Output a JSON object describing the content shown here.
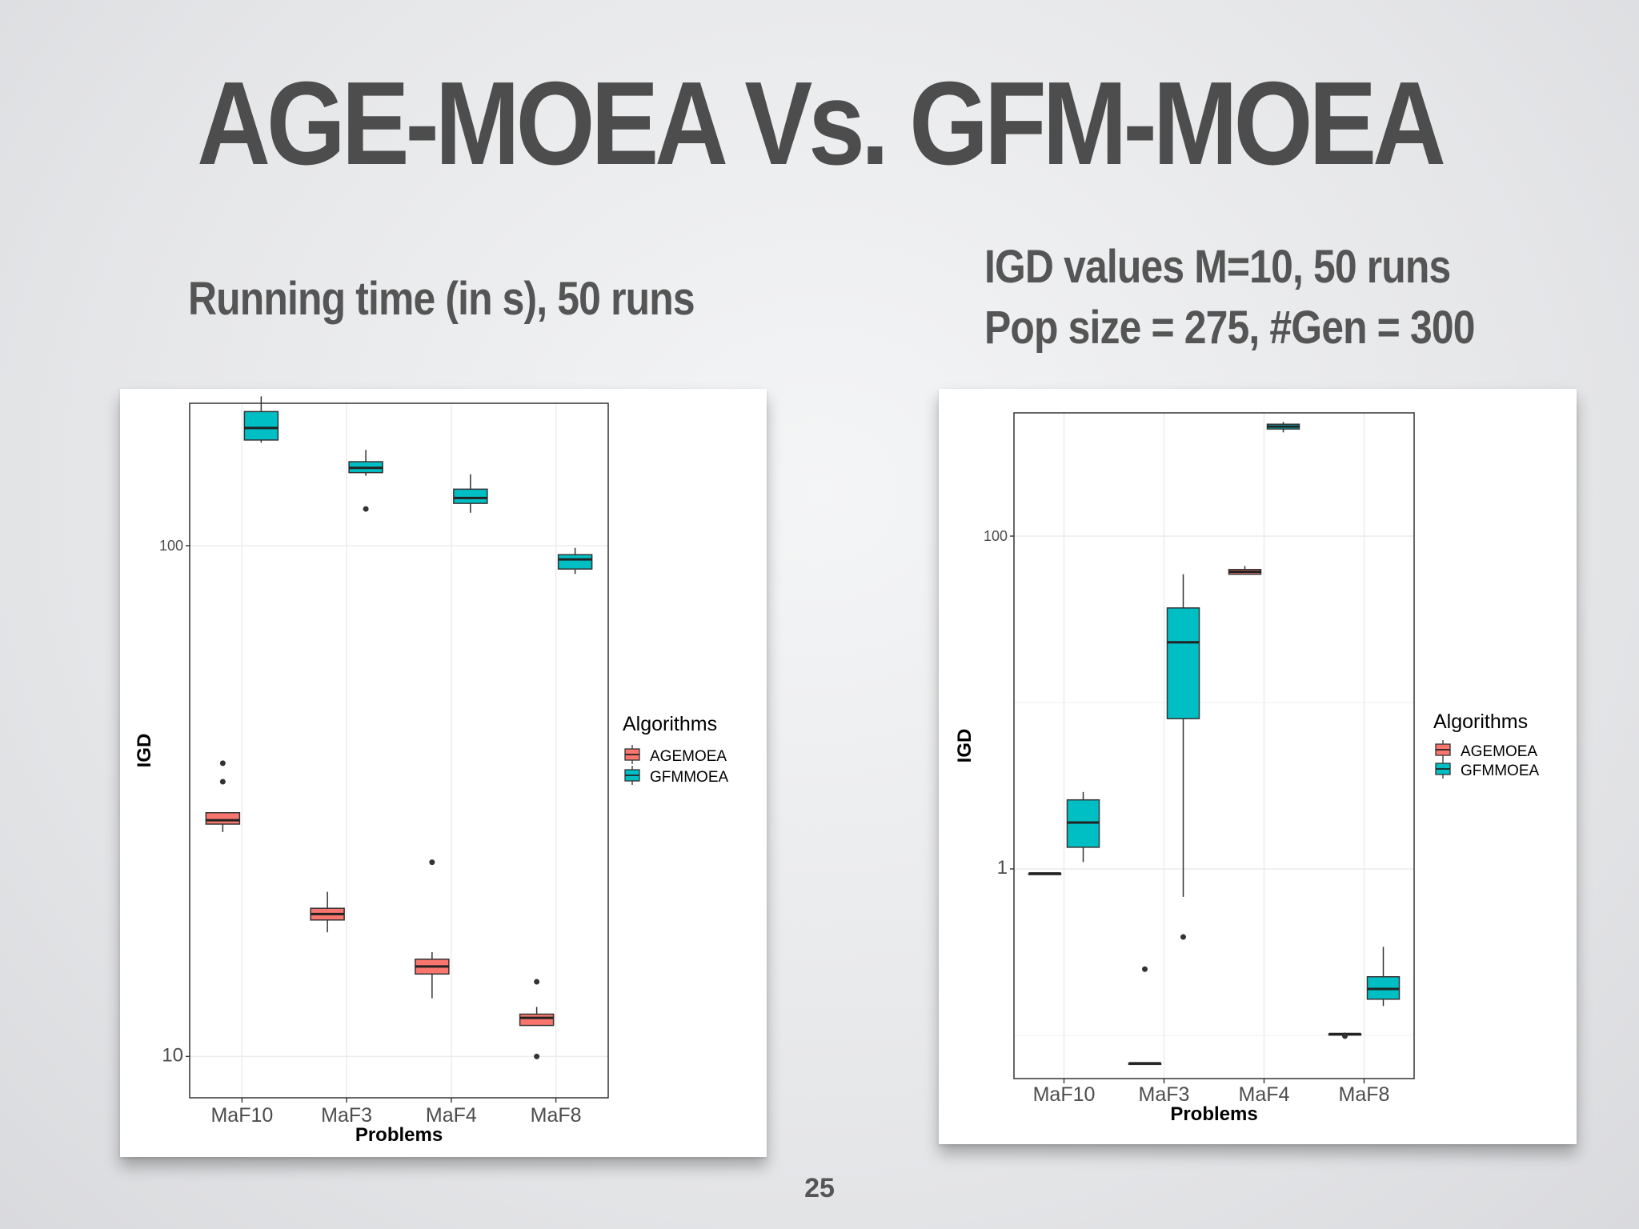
{
  "slide": {
    "title": "AGE-MOEA Vs. GFM-MOEA",
    "subtitle_left": "Running time (in s),  50 runs",
    "subtitle_right_line1": "IGD values M=10,  50 runs",
    "subtitle_right_line2": "Pop size = 275,  #Gen = 300",
    "page_number": "25"
  },
  "colors": {
    "agemoea": "#f8766d",
    "gfmmoea": "#00bfc4"
  },
  "chart_data": [
    {
      "type": "boxplot",
      "xlabel": "Problems",
      "ylabel": "IGD",
      "yscale": "log",
      "ylim": [
        8.3,
        190
      ],
      "y_ticks": [
        {
          "value": 100,
          "label": "100"
        },
        {
          "value": 10,
          "label": "10"
        }
      ],
      "categories": [
        "MaF10",
        "MaF3",
        "MaF4",
        "MaF8"
      ],
      "legend": {
        "title": "Algorithms",
        "position": "right",
        "entries": [
          "AGEMOEA",
          "GFMMOEA"
        ]
      },
      "series": [
        {
          "name": "AGEMOEA",
          "boxes": [
            {
              "category": "MaF10",
              "whisker_low": 27.5,
              "q1": 28.5,
              "median": 29.0,
              "q3": 30.0,
              "whisker_high": 30.0,
              "outliers": [
                34.5,
                37.5
              ]
            },
            {
              "category": "MaF3",
              "whisker_low": 17.5,
              "q1": 18.5,
              "median": 19.0,
              "q3": 19.5,
              "whisker_high": 21.0,
              "outliers": []
            },
            {
              "category": "MaF4",
              "whisker_low": 13.0,
              "q1": 14.5,
              "median": 15.0,
              "q3": 15.5,
              "whisker_high": 16.0,
              "outliers": [
                24.0
              ]
            },
            {
              "category": "MaF8",
              "whisker_low": 11.5,
              "q1": 11.5,
              "median": 11.9,
              "q3": 12.1,
              "whisker_high": 12.5,
              "outliers": [
                14.0,
                10.0
              ]
            }
          ]
        },
        {
          "name": "GFMMOEA",
          "boxes": [
            {
              "category": "MaF10",
              "whisker_low": 159,
              "q1": 161,
              "median": 170,
              "q3": 183,
              "whisker_high": 196,
              "outliers": []
            },
            {
              "category": "MaF3",
              "whisker_low": 137,
              "q1": 139,
              "median": 142,
              "q3": 146,
              "whisker_high": 154,
              "outliers": [
                118
              ]
            },
            {
              "category": "MaF4",
              "whisker_low": 116,
              "q1": 121,
              "median": 124,
              "q3": 129,
              "whisker_high": 138,
              "outliers": []
            },
            {
              "category": "MaF8",
              "whisker_low": 88,
              "q1": 90,
              "median": 94,
              "q3": 96,
              "whisker_high": 99,
              "outliers": []
            }
          ]
        }
      ]
    },
    {
      "type": "boxplot",
      "xlabel": "Problems",
      "ylabel": "IGD",
      "yscale": "log",
      "ylim": [
        0.055,
        550
      ],
      "y_ticks": [
        {
          "value": 100,
          "label": "100"
        },
        {
          "value": 1,
          "label": "1"
        }
      ],
      "categories": [
        "MaF10",
        "MaF3",
        "MaF4",
        "MaF8"
      ],
      "legend": {
        "title": "Algorithms",
        "position": "right",
        "entries": [
          "AGEMOEA",
          "GFMMOEA"
        ]
      },
      "series": [
        {
          "name": "AGEMOEA",
          "boxes": [
            {
              "category": "MaF10",
              "whisker_low": 0.94,
              "q1": 0.94,
              "median": 0.94,
              "q3": 0.94,
              "whisker_high": 0.94,
              "outliers": []
            },
            {
              "category": "MaF3",
              "whisker_low": 0.068,
              "q1": 0.068,
              "median": 0.068,
              "q3": 0.068,
              "whisker_high": 0.068,
              "outliers": [
                0.25
              ]
            },
            {
              "category": "MaF4",
              "whisker_low": 59,
              "q1": 59,
              "median": 61,
              "q3": 63,
              "whisker_high": 66,
              "outliers": []
            },
            {
              "category": "MaF8",
              "whisker_low": 0.1,
              "q1": 0.102,
              "median": 0.102,
              "q3": 0.102,
              "whisker_high": 0.104,
              "outliers": [
                0.099
              ]
            }
          ]
        },
        {
          "name": "GFMMOEA",
          "boxes": [
            {
              "category": "MaF10",
              "whisker_low": 1.1,
              "q1": 1.35,
              "median": 1.9,
              "q3": 2.6,
              "whisker_high": 2.9,
              "outliers": []
            },
            {
              "category": "MaF3",
              "whisker_low": 0.68,
              "q1": 8.0,
              "median": 23.0,
              "q3": 37.0,
              "whisker_high": 59.0,
              "outliers": [
                0.39
              ]
            },
            {
              "category": "MaF4",
              "whisker_low": 420,
              "q1": 440,
              "median": 455,
              "q3": 470,
              "whisker_high": 485,
              "outliers": []
            },
            {
              "category": "MaF8",
              "whisker_low": 0.15,
              "q1": 0.165,
              "median": 0.19,
              "q3": 0.225,
              "whisker_high": 0.34,
              "outliers": []
            }
          ]
        }
      ]
    }
  ]
}
